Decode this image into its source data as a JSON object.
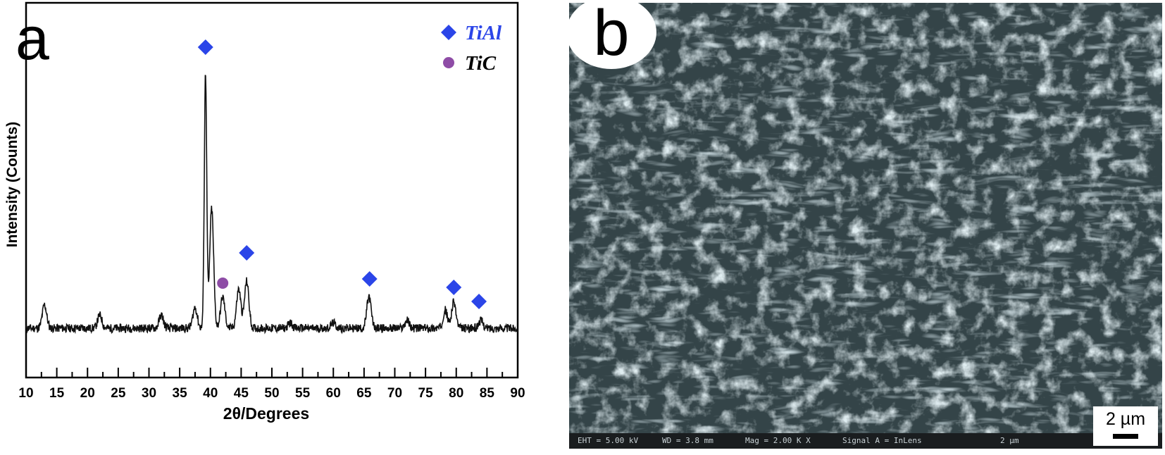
{
  "panel_a": {
    "label": "a",
    "chart_data": {
      "type": "line",
      "xlabel": "2θ/Degrees",
      "ylabel": "Intensity (Counts)",
      "xlim": [
        10,
        90
      ],
      "x_ticks": [
        "10",
        "15",
        "20",
        "25",
        "30",
        "35",
        "40",
        "45",
        "50",
        "55",
        "60",
        "65",
        "70",
        "75",
        "80",
        "85",
        "90"
      ],
      "y_ticks_labeled": false,
      "grid": false,
      "legend_position": "top-right",
      "series": [
        {
          "peaks": [
            {
              "x": 13.0,
              "y": 11
            },
            {
              "x": 22.0,
              "y": 7
            },
            {
              "x": 32.0,
              "y": 7
            },
            {
              "x": 37.5,
              "y": 10
            },
            {
              "x": 39.2,
              "y": 100
            },
            {
              "x": 40.2,
              "y": 48
            },
            {
              "x": 42.0,
              "y": 14
            },
            {
              "x": 44.6,
              "y": 17
            },
            {
              "x": 45.9,
              "y": 20
            },
            {
              "x": 53.0,
              "y": 4
            },
            {
              "x": 60.0,
              "y": 4
            },
            {
              "x": 65.8,
              "y": 14
            },
            {
              "x": 72.0,
              "y": 5
            },
            {
              "x": 78.2,
              "y": 9
            },
            {
              "x": 79.6,
              "y": 12
            },
            {
              "x": 84.0,
              "y": 5
            }
          ],
          "baseline": 2
        }
      ],
      "legend": [
        {
          "name": "TiAl",
          "marker": "diamond",
          "color": "#2b45e8"
        },
        {
          "name": "TiC",
          "marker": "circle",
          "color": "#8e4ca6"
        }
      ],
      "annotations": [
        {
          "phase": "TiAl",
          "x": 39.2
        },
        {
          "phase": "TiC",
          "x": 42.0
        },
        {
          "phase": "TiAl",
          "x": 45.9
        },
        {
          "phase": "TiAl",
          "x": 65.9
        },
        {
          "phase": "TiAl",
          "x": 79.6
        },
        {
          "phase": "TiAl",
          "x": 83.7
        }
      ]
    }
  },
  "panel_b": {
    "label": "b",
    "scale_bar_label": "2 µm",
    "info_bar": {
      "eht": "EHT = 5.00 kV",
      "wd": "WD = 3.8 mm",
      "mag": "Mag = 2.00 K X",
      "signal": "Signal A = InLens",
      "mini_scale": "2 µm"
    }
  }
}
